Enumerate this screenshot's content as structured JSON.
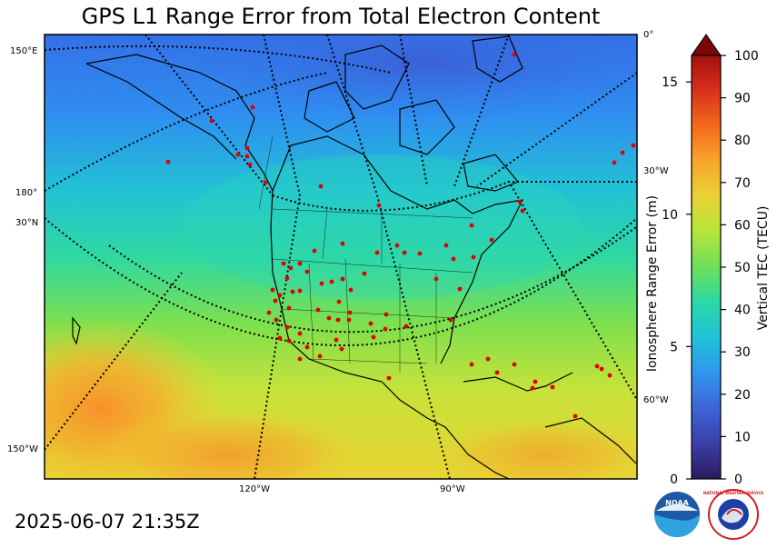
{
  "title": "GPS L1 Range Error from Total Electron Content",
  "timestamp": "2025-06-07 21:35Z",
  "map": {
    "longitude_labels": [
      "150°E",
      "180°",
      "150°W",
      "120°W",
      "90°W",
      "60°W",
      "30°W",
      "0°"
    ],
    "latitude_labels": [
      "30°N"
    ],
    "station_marker_color": "#e00000",
    "coastline_color": "#000000"
  },
  "range_axis": {
    "label": "Ionosphere Range Error (m)",
    "ticks": [
      0,
      5,
      10,
      15
    ],
    "min": 0,
    "max": 16
  },
  "colorbar": {
    "label": "Vertical TEC (TECU)",
    "ticks": [
      0,
      10,
      20,
      30,
      40,
      50,
      60,
      70,
      80,
      90,
      100
    ],
    "min": 0,
    "max": 100,
    "extend": "max",
    "colormap": "jet-like",
    "colors": [
      "#2a1b5e",
      "#3a3fa8",
      "#3f63d8",
      "#2f96f0",
      "#1fc3d8",
      "#2ad9a8",
      "#6de05a",
      "#b4e63a",
      "#e8d334",
      "#f9a52c",
      "#f46a1c",
      "#d8301a",
      "#a31010",
      "#7a0808"
    ]
  },
  "logos": {
    "noaa": "NOAA",
    "nws": "NATIONAL WEATHER SERVICE"
  }
}
